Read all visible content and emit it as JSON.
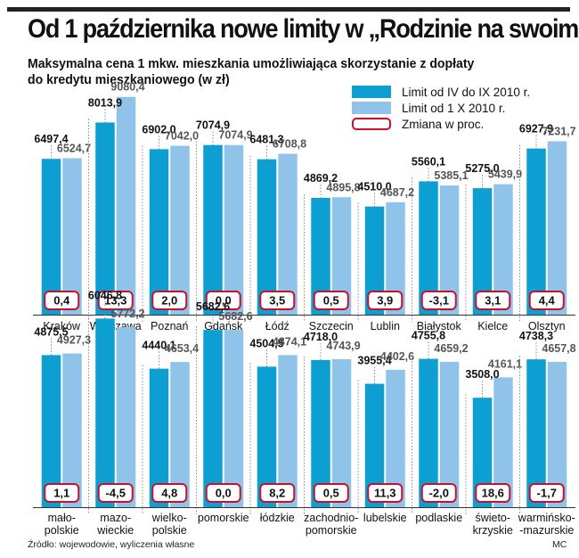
{
  "title": "Od 1 października nowe limity w „Rodzinie na swoim”",
  "subtitle_line1": "Maksymalna cena 1 mkw. mieszkania umożliwiająca skorzystanie z dopłaty",
  "subtitle_line2": "do kredytu mieszkaniowego (w zł)",
  "legend": {
    "old": "Limit od IV do IX 2010 r.",
    "new": "Limit od 1 X  2010 r.",
    "change": "Zmiana w proc."
  },
  "colors": {
    "old": "#0e9fd2",
    "new": "#8fc3ea",
    "change_border": "#c8102e",
    "divider": "#888888",
    "text": "#111111"
  },
  "source": "Źródło: wojewodowie, wyliczenia własne",
  "author": "MC",
  "chart_data": [
    {
      "type": "bar",
      "title": "",
      "categories": [
        "Kraków",
        "Warszawa",
        "Poznań",
        "Gdańsk",
        "Łódź",
        "Szczecin",
        "Lublin",
        "Białystok",
        "Kielce",
        "Olsztyn"
      ],
      "series": [
        {
          "name": "Limit od IV do IX 2010 r.",
          "values": [
            "6497,4",
            "8013,9",
            "6902,0",
            "7074,9",
            "6481,3",
            "4869,2",
            "4510,0",
            "5560,1",
            "5275,0",
            "6927,9"
          ]
        },
        {
          "name": "Limit od 1 X  2010 r.",
          "values": [
            "6524,7",
            "9080,4",
            "7042,0",
            "7074,9",
            "6708,8",
            "4895,8",
            "4687,2",
            "5385,1",
            "5439,9",
            "7231,7"
          ]
        },
        {
          "name": "Zmiana w proc.",
          "values": [
            "0,4",
            "13,3",
            "2,0",
            "0,0",
            "3,5",
            "0,5",
            "3,9",
            "-3,1",
            "3,1",
            "4,4"
          ]
        }
      ]
    },
    {
      "type": "bar",
      "title": "",
      "categories": [
        "mało-\npolskie",
        "mazo-\nwieckie",
        "wielko-\npolskie",
        "pomorskie",
        "łódzkie",
        "zachodnio-\npomorskie",
        "lubelskie",
        "podlaskie",
        "świeto-\nkrzyskie",
        "warmińsko-\n-mazurskie"
      ],
      "series": [
        {
          "name": "Limit od IV do IX 2010 r.",
          "values": [
            "4875,5",
            "6046,8",
            "4440,1",
            "5682,6",
            "4504,5",
            "4718,0",
            "3955,4",
            "4755,8",
            "3508,0",
            "4738,3"
          ]
        },
        {
          "name": "Limit od 1 X  2010 r.",
          "values": [
            "4927,3",
            "5772,2",
            "4653,4",
            "5682,6",
            "4874,1",
            "4743,9",
            "4402,6",
            "4659,2",
            "4161,1",
            "4657,8"
          ]
        },
        {
          "name": "Zmiana w proc.",
          "values": [
            "1,1",
            "-4,5",
            "4,8",
            "0,0",
            "8,2",
            "0,5",
            "11,3",
            "-2,0",
            "18,6",
            "-1,7"
          ]
        }
      ]
    }
  ]
}
